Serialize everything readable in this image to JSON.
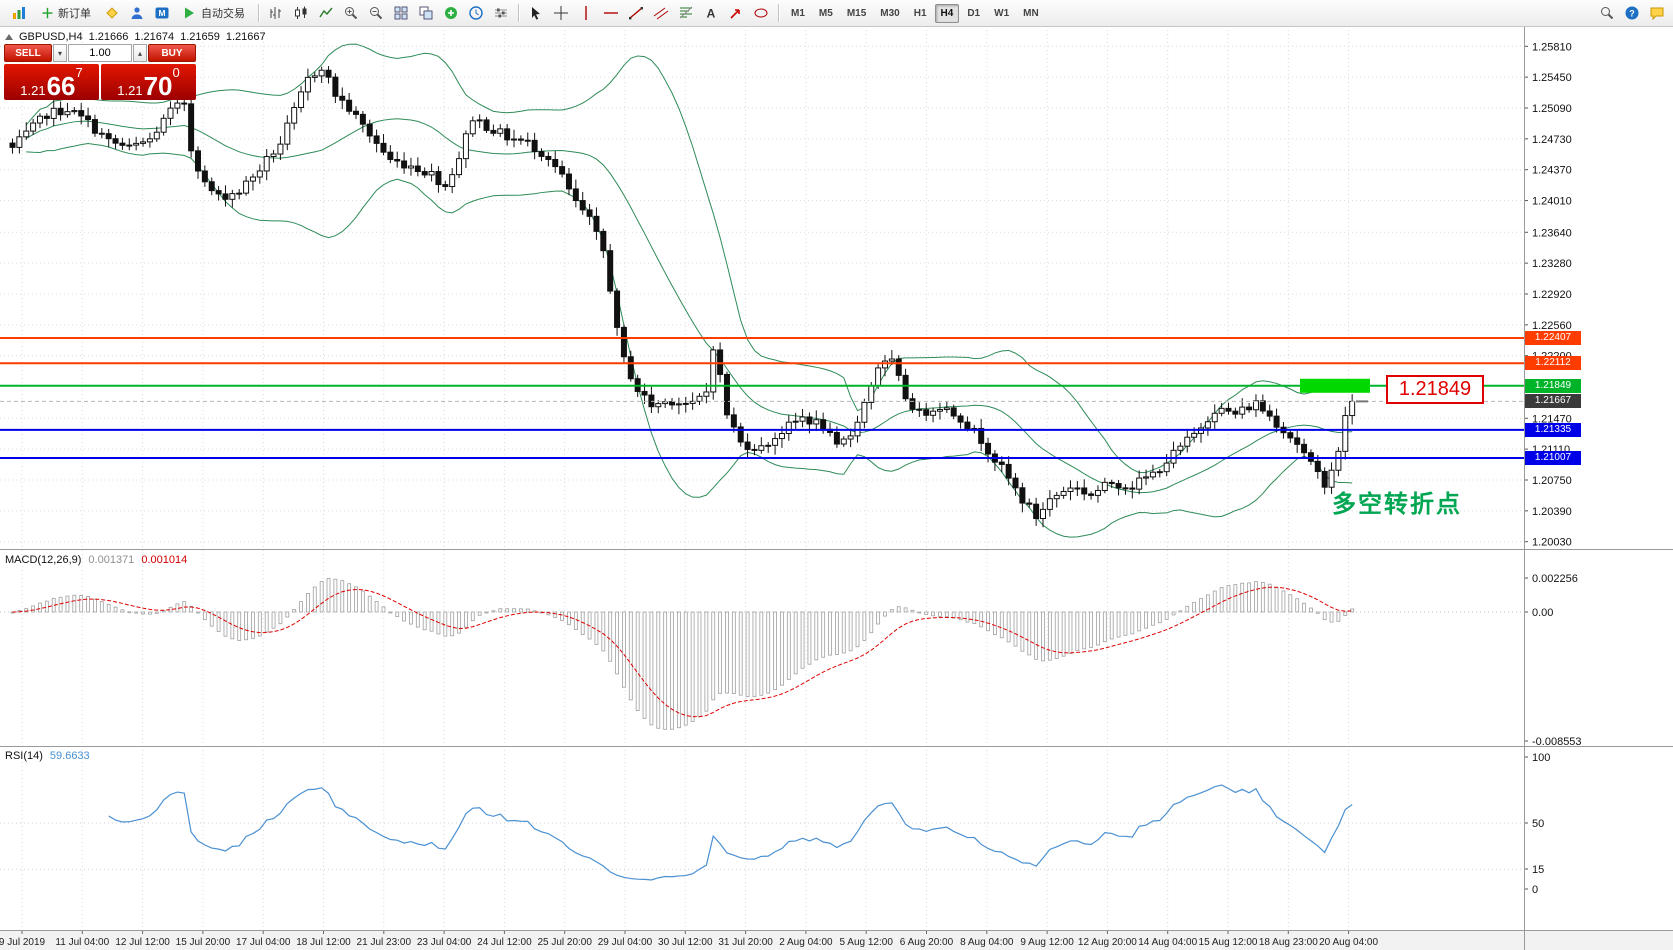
{
  "toolbar": {
    "new_order_label": "新订单",
    "autotrade_label": "自动交易",
    "timeframes": [
      "M1",
      "M5",
      "M15",
      "M30",
      "H1",
      "H4",
      "D1",
      "W1",
      "MN"
    ],
    "active_timeframe": "H4"
  },
  "trade_panel": {
    "sell_label": "SELL",
    "buy_label": "BUY",
    "volume": "1.00",
    "sell_price": {
      "base": "1.21",
      "big": "66",
      "sup": "7"
    },
    "buy_price": {
      "base": "1.21",
      "big": "70",
      "sup": "0"
    }
  },
  "chart_header": {
    "symbol": "GBPUSD,H4",
    "open": "1.21666",
    "high": "1.21674",
    "low": "1.21659",
    "close": "1.21667"
  },
  "price_axis": {
    "labels": [
      "1.25810",
      "1.25450",
      "1.25090",
      "1.24730",
      "1.24370",
      "1.24010",
      "1.23640",
      "1.23280",
      "1.22920",
      "1.22560",
      "1.22200",
      "1.21470",
      "1.21110",
      "1.20750",
      "1.20390",
      "1.20030"
    ]
  },
  "time_axis": {
    "labels": [
      "9 Jul 2019",
      "11 Jul 04:00",
      "12 Jul 12:00",
      "15 Jul 20:00",
      "17 Jul 04:00",
      "18 Jul 12:00",
      "21 Jul 23:00",
      "23 Jul 04:00",
      "24 Jul 12:00",
      "25 Jul 20:00",
      "29 Jul 04:00",
      "30 Jul 12:00",
      "31 Jul 20:00",
      "2 Aug 04:00",
      "5 Aug 12:00",
      "6 Aug 20:00",
      "8 Aug 04:00",
      "9 Aug 12:00",
      "12 Aug 20:00",
      "14 Aug 04:00",
      "15 Aug 12:00",
      "18 Aug 23:00",
      "20 Aug 04:00"
    ]
  },
  "levels": [
    {
      "price": 1.22407,
      "label": "1.22407",
      "color": "#ff3c00"
    },
    {
      "price": 1.22112,
      "label": "1.22112",
      "color": "#ff3c00"
    },
    {
      "price": 1.21849,
      "label": "1.21849",
      "color": "#00b42a"
    },
    {
      "price": 1.21335,
      "label": "1.21335",
      "color": "#0000e8"
    },
    {
      "price": 1.21007,
      "label": "1.21007",
      "color": "#0000e8"
    }
  ],
  "current_price": {
    "price": 1.21667,
    "label": "1.21667"
  },
  "annotations": {
    "level_label": "1.21849",
    "turning_point": "多空转折点",
    "highlight_box": {
      "price": 1.21849,
      "x_from": 1300,
      "x_to": 1370,
      "color": "#00d800"
    }
  },
  "indicators": {
    "macd": {
      "name": "MACD(12,26,9)",
      "main_value": "0.001371",
      "signal_value": "0.001014",
      "axis_labels": [
        "0.002256",
        "0.00",
        "-0.008553"
      ]
    },
    "rsi": {
      "name": "RSI(14)",
      "value": "59.6633",
      "axis_labels": [
        "100",
        "50",
        "15",
        "0"
      ]
    }
  },
  "chart_data": {
    "type": "candlestick",
    "symbol": "GBPUSD",
    "timeframe": "H4",
    "title": "GBPUSD,H4",
    "ohlc_current": {
      "open": 1.21666,
      "high": 1.21674,
      "low": 1.21659,
      "close": 1.21667
    },
    "y_range": [
      1.1949,
      1.26
    ],
    "candle_count": 196,
    "price_anchors": [
      [
        0,
        1.2462
      ],
      [
        2,
        1.2478
      ],
      [
        5,
        1.2502
      ],
      [
        8,
        1.2508
      ],
      [
        11,
        1.2492
      ],
      [
        14,
        1.247
      ],
      [
        17,
        1.2462
      ],
      [
        20,
        1.2472
      ],
      [
        23,
        1.2505
      ],
      [
        25,
        1.2515
      ],
      [
        26,
        1.2462
      ],
      [
        28,
        1.242
      ],
      [
        30,
        1.2405
      ],
      [
        33,
        1.2412
      ],
      [
        36,
        1.2438
      ],
      [
        39,
        1.2468
      ],
      [
        41,
        1.2505
      ],
      [
        43,
        1.2542
      ],
      [
        45,
        1.2558
      ],
      [
        47,
        1.2525
      ],
      [
        49,
        1.2508
      ],
      [
        52,
        1.2478
      ],
      [
        55,
        1.2448
      ],
      [
        58,
        1.2442
      ],
      [
        61,
        1.2432
      ],
      [
        63,
        1.2418
      ],
      [
        65,
        1.2452
      ],
      [
        67,
        1.2498
      ],
      [
        69,
        1.2488
      ],
      [
        72,
        1.2475
      ],
      [
        75,
        1.2468
      ],
      [
        78,
        1.2452
      ],
      [
        80,
        1.2428
      ],
      [
        82,
        1.2398
      ],
      [
        84,
        1.2378
      ],
      [
        86,
        1.2342
      ],
      [
        87,
        1.23
      ],
      [
        88,
        1.2248
      ],
      [
        89,
        1.2215
      ],
      [
        91,
        1.218
      ],
      [
        93,
        1.2162
      ],
      [
        96,
        1.2168
      ],
      [
        99,
        1.2162
      ],
      [
        101,
        1.2178
      ],
      [
        102,
        1.2232
      ],
      [
        103,
        1.2195
      ],
      [
        104,
        1.2152
      ],
      [
        106,
        1.2118
      ],
      [
        109,
        1.2112
      ],
      [
        112,
        1.2132
      ],
      [
        115,
        1.2148
      ],
      [
        118,
        1.2138
      ],
      [
        120,
        1.2112
      ],
      [
        122,
        1.2128
      ],
      [
        124,
        1.2165
      ],
      [
        126,
        1.2208
      ],
      [
        128,
        1.2212
      ],
      [
        130,
        1.2172
      ],
      [
        132,
        1.2152
      ],
      [
        135,
        1.2162
      ],
      [
        138,
        1.2148
      ],
      [
        141,
        1.2122
      ],
      [
        144,
        1.2088
      ],
      [
        147,
        1.2052
      ],
      [
        149,
        1.2032
      ],
      [
        151,
        1.2052
      ],
      [
        154,
        1.2068
      ],
      [
        157,
        1.2058
      ],
      [
        160,
        1.2072
      ],
      [
        163,
        1.2068
      ],
      [
        166,
        1.2082
      ],
      [
        169,
        1.2105
      ],
      [
        172,
        1.2128
      ],
      [
        175,
        1.2158
      ],
      [
        178,
        1.2152
      ],
      [
        181,
        1.2165
      ],
      [
        184,
        1.2142
      ],
      [
        187,
        1.2118
      ],
      [
        189,
        1.2092
      ],
      [
        191,
        1.2072
      ],
      [
        193,
        1.2105
      ],
      [
        194,
        1.2152
      ],
      [
        195,
        1.21667
      ]
    ],
    "overlays": [
      {
        "type": "bollinger_bands",
        "period": 20,
        "deviation": 2,
        "color": "#2e8b57"
      }
    ],
    "sub_indicators": [
      {
        "type": "macd",
        "fast": 12,
        "slow": 26,
        "signal": 9,
        "last_main": 0.001371,
        "last_signal": 0.001014
      },
      {
        "type": "rsi",
        "period": 14,
        "last_value": 59.6633
      }
    ]
  }
}
